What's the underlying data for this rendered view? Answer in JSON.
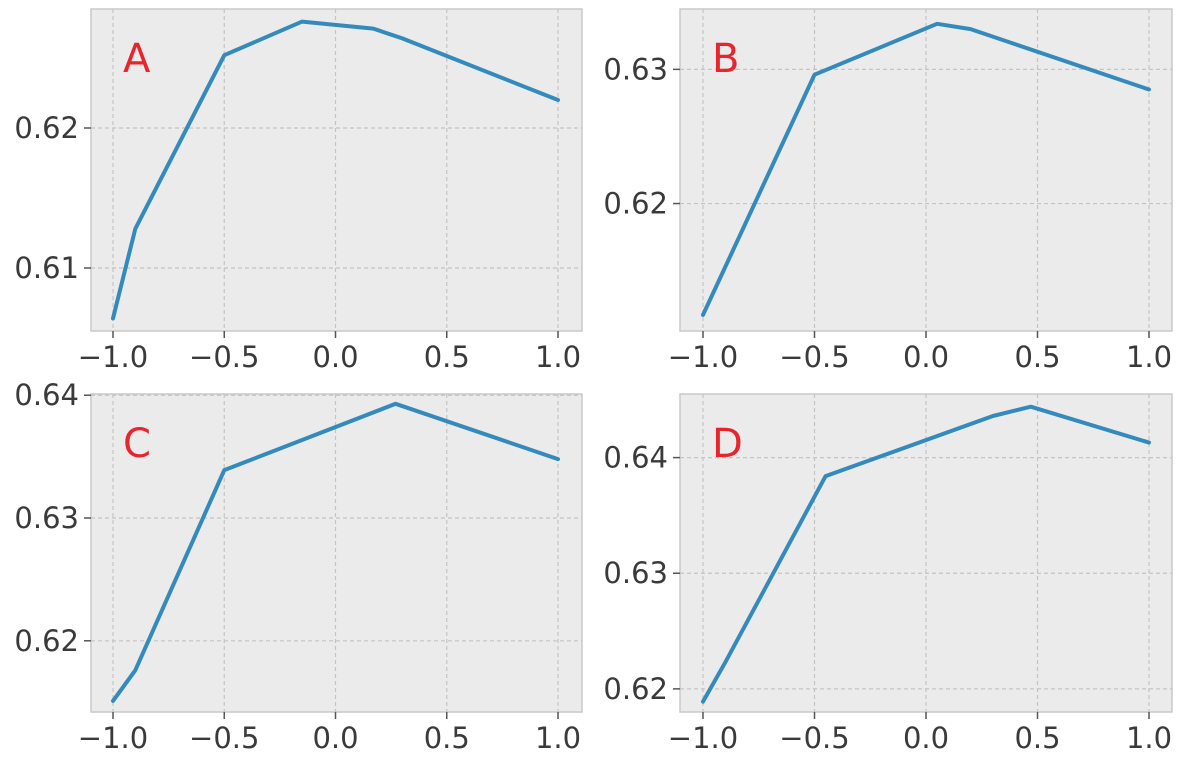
{
  "figure": {
    "accent_color": "#348abd",
    "label_color": "#e8242c",
    "background_color": "#ebebeb"
  },
  "chart_data": [
    {
      "type": "line",
      "panel_label": "A",
      "xlim": [
        -1.0,
        1.0
      ],
      "ylim": [
        0.6055,
        0.6285
      ],
      "x_ticks": [
        -1.0,
        -0.5,
        0.0,
        0.5,
        1.0
      ],
      "x_tick_labels": [
        "−1.0",
        "−0.5",
        "0.0",
        "0.5",
        "1.0"
      ],
      "y_ticks": [
        0.61,
        0.62
      ],
      "y_tick_labels": [
        "0.61",
        "0.62"
      ],
      "grid": true,
      "series": [
        {
          "x": [
            -1.0,
            -0.9,
            -0.5,
            -0.15,
            0.17,
            0.3,
            1.0
          ],
          "y": [
            0.6064,
            0.6128,
            0.6252,
            0.6276,
            0.6271,
            0.6264,
            0.622
          ]
        }
      ]
    },
    {
      "type": "line",
      "panel_label": "B",
      "xlim": [
        -1.0,
        1.0
      ],
      "ylim": [
        0.6105,
        0.6345
      ],
      "x_ticks": [
        -1.0,
        -0.5,
        0.0,
        0.5,
        1.0
      ],
      "x_tick_labels": [
        "−1.0",
        "−0.5",
        "0.0",
        "0.5",
        "1.0"
      ],
      "y_ticks": [
        0.62,
        0.63
      ],
      "y_tick_labels": [
        "0.62",
        "0.63"
      ],
      "grid": true,
      "series": [
        {
          "x": [
            -1.0,
            -0.5,
            0.05,
            0.2,
            1.0
          ],
          "y": [
            0.6117,
            0.6296,
            0.6334,
            0.633,
            0.6285
          ]
        }
      ]
    },
    {
      "type": "line",
      "panel_label": "C",
      "xlim": [
        -1.0,
        1.0
      ],
      "ylim": [
        0.6142,
        0.6401
      ],
      "x_ticks": [
        -1.0,
        -0.5,
        0.0,
        0.5,
        1.0
      ],
      "x_tick_labels": [
        "−1.0",
        "−0.5",
        "0.0",
        "0.5",
        "1.0"
      ],
      "y_ticks": [
        0.62,
        0.63,
        0.64
      ],
      "y_tick_labels": [
        "0.62",
        "0.63",
        "0.64"
      ],
      "grid": true,
      "series": [
        {
          "x": [
            -1.0,
            -0.9,
            -0.5,
            0.27,
            1.0
          ],
          "y": [
            0.6151,
            0.6176,
            0.6339,
            0.6393,
            0.6348
          ]
        }
      ]
    },
    {
      "type": "line",
      "panel_label": "D",
      "xlim": [
        -1.0,
        1.0
      ],
      "ylim": [
        0.618,
        0.6455
      ],
      "x_ticks": [
        -1.0,
        -0.5,
        0.0,
        0.5,
        1.0
      ],
      "x_tick_labels": [
        "−1.0",
        "−0.5",
        "0.0",
        "0.5",
        "1.0"
      ],
      "y_ticks": [
        0.62,
        0.63,
        0.64
      ],
      "y_tick_labels": [
        "0.62",
        "0.63",
        "0.64"
      ],
      "grid": true,
      "series": [
        {
          "x": [
            -1.0,
            -0.9,
            -0.45,
            0.3,
            0.47,
            1.0
          ],
          "y": [
            0.6189,
            0.6223,
            0.6384,
            0.6436,
            0.6444,
            0.6413
          ]
        }
      ]
    }
  ]
}
